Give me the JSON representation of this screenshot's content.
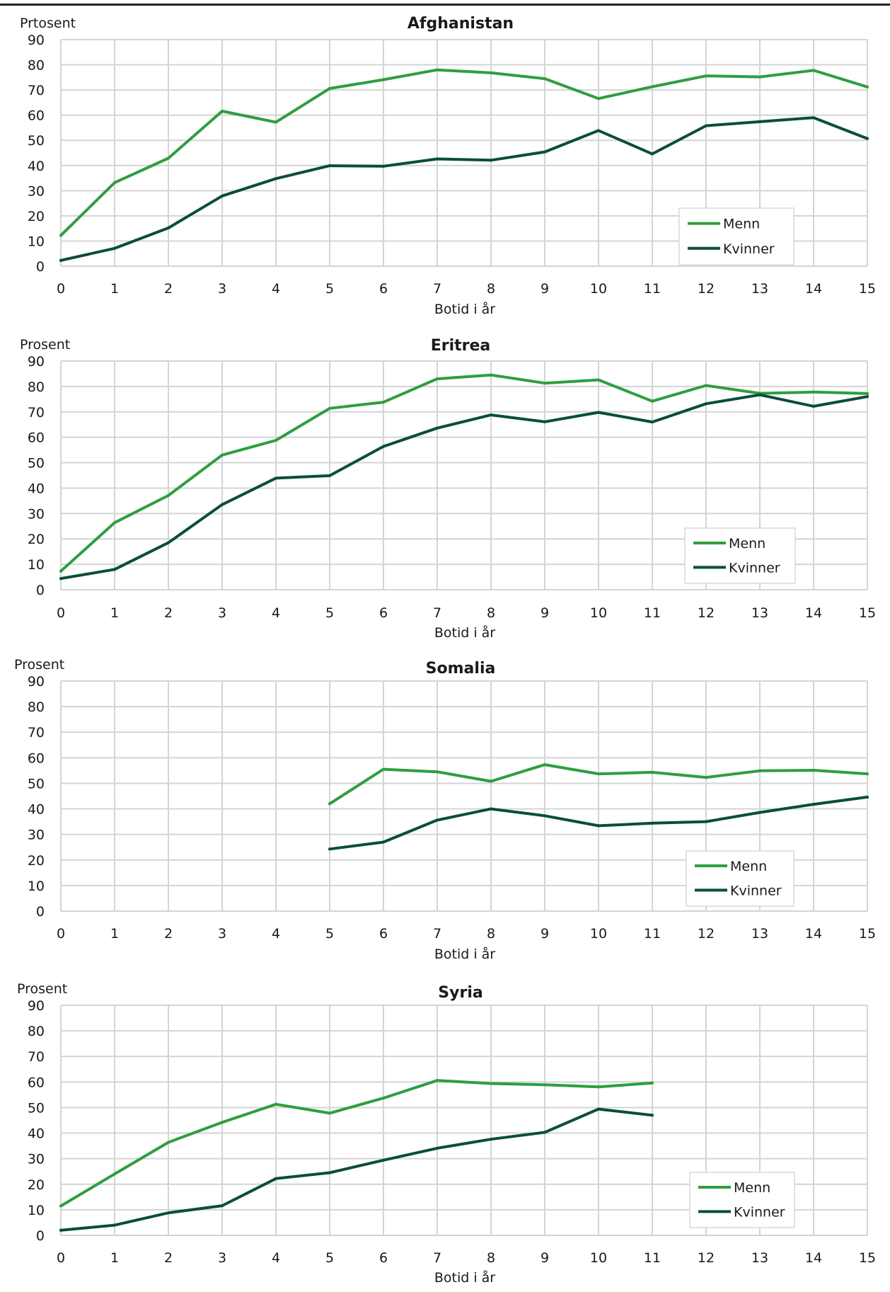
{
  "colors": {
    "menn": "#2f9e3f",
    "kvinner": "#0b4d3c",
    "grid": "#d4d4d4"
  },
  "chart_data": [
    {
      "type": "line",
      "title": "Afghanistan",
      "ylabel": "Prtosent",
      "xlabel": "Botid i år",
      "ylim": [
        0,
        90
      ],
      "yticks": [
        0,
        10,
        20,
        30,
        40,
        50,
        60,
        70,
        80,
        90
      ],
      "x": [
        0,
        1,
        2,
        3,
        4,
        5,
        6,
        7,
        8,
        9,
        10,
        11,
        12,
        13,
        14,
        15
      ],
      "grid": true,
      "legend": "bottom-right",
      "series": [
        {
          "name": "Menn",
          "values": [
            12.2,
            33.2,
            42.9,
            61.6,
            57.2,
            70.6,
            74.1,
            78.0,
            76.8,
            74.5,
            66.6,
            71.3,
            75.6,
            75.2,
            77.8,
            71.2
          ]
        },
        {
          "name": "Kvinner",
          "values": [
            2.3,
            7.1,
            15.2,
            27.9,
            34.8,
            39.9,
            39.7,
            42.6,
            42.1,
            45.4,
            53.9,
            44.6,
            55.8,
            57.4,
            59.0,
            50.7
          ]
        }
      ]
    },
    {
      "type": "line",
      "title": "Eritrea",
      "ylabel": "Prosent",
      "xlabel": "Botid i år",
      "ylim": [
        0,
        90
      ],
      "yticks": [
        0,
        10,
        20,
        30,
        40,
        50,
        60,
        70,
        80,
        90
      ],
      "x": [
        0,
        1,
        2,
        3,
        4,
        5,
        6,
        7,
        8,
        9,
        10,
        11,
        12,
        13,
        14,
        15
      ],
      "grid": true,
      "legend": "bottom-right",
      "series": [
        {
          "name": "Menn",
          "values": [
            7.3,
            26.4,
            37.1,
            53.0,
            58.8,
            71.4,
            73.8,
            83.0,
            84.5,
            81.3,
            82.6,
            74.2,
            80.4,
            77.3,
            77.8,
            77.2
          ]
        },
        {
          "name": "Kvinner",
          "values": [
            4.4,
            8.0,
            18.5,
            33.5,
            43.9,
            44.9,
            56.4,
            63.6,
            68.8,
            66.1,
            69.8,
            66.0,
            73.2,
            76.7,
            72.2,
            76.0
          ]
        }
      ]
    },
    {
      "type": "line",
      "title": "Somalia",
      "ylabel": "Prosent",
      "xlabel": "Botid i år",
      "ylim": [
        0,
        90
      ],
      "yticks": [
        0,
        10,
        20,
        30,
        40,
        50,
        60,
        70,
        80,
        90
      ],
      "x": [
        0,
        1,
        2,
        3,
        4,
        5,
        6,
        7,
        8,
        9,
        10,
        11,
        12,
        13,
        14,
        15
      ],
      "grid": true,
      "legend": "bottom-right",
      "series": [
        {
          "name": "Menn",
          "values": [
            null,
            null,
            null,
            null,
            null,
            42.0,
            55.5,
            54.5,
            50.8,
            57.3,
            53.7,
            54.3,
            52.3,
            54.9,
            55.1,
            53.7
          ]
        },
        {
          "name": "Kvinner",
          "values": [
            null,
            null,
            null,
            null,
            null,
            24.3,
            27.0,
            35.6,
            40.0,
            37.3,
            33.4,
            34.4,
            35.0,
            38.6,
            41.8,
            44.6
          ]
        }
      ]
    },
    {
      "type": "line",
      "title": "Syria",
      "ylabel": "Prosent",
      "xlabel": "Botid i år",
      "ylim": [
        0,
        90
      ],
      "yticks": [
        0,
        10,
        20,
        30,
        40,
        50,
        60,
        70,
        80,
        90
      ],
      "x": [
        0,
        1,
        2,
        3,
        4,
        5,
        6,
        7,
        8,
        9,
        10,
        11,
        12,
        13,
        14,
        15
      ],
      "grid": true,
      "legend": "bottom-right",
      "series": [
        {
          "name": "Menn",
          "values": [
            11.5,
            24.0,
            36.4,
            44.2,
            51.3,
            47.8,
            53.7,
            60.6,
            59.4,
            58.9,
            58.1,
            59.6,
            null,
            null,
            null,
            null
          ]
        },
        {
          "name": "Kvinner",
          "values": [
            2.0,
            4.0,
            8.8,
            11.6,
            22.2,
            24.5,
            29.4,
            34.1,
            37.6,
            40.3,
            49.4,
            47.0,
            null,
            null,
            null,
            null
          ]
        }
      ]
    }
  ]
}
